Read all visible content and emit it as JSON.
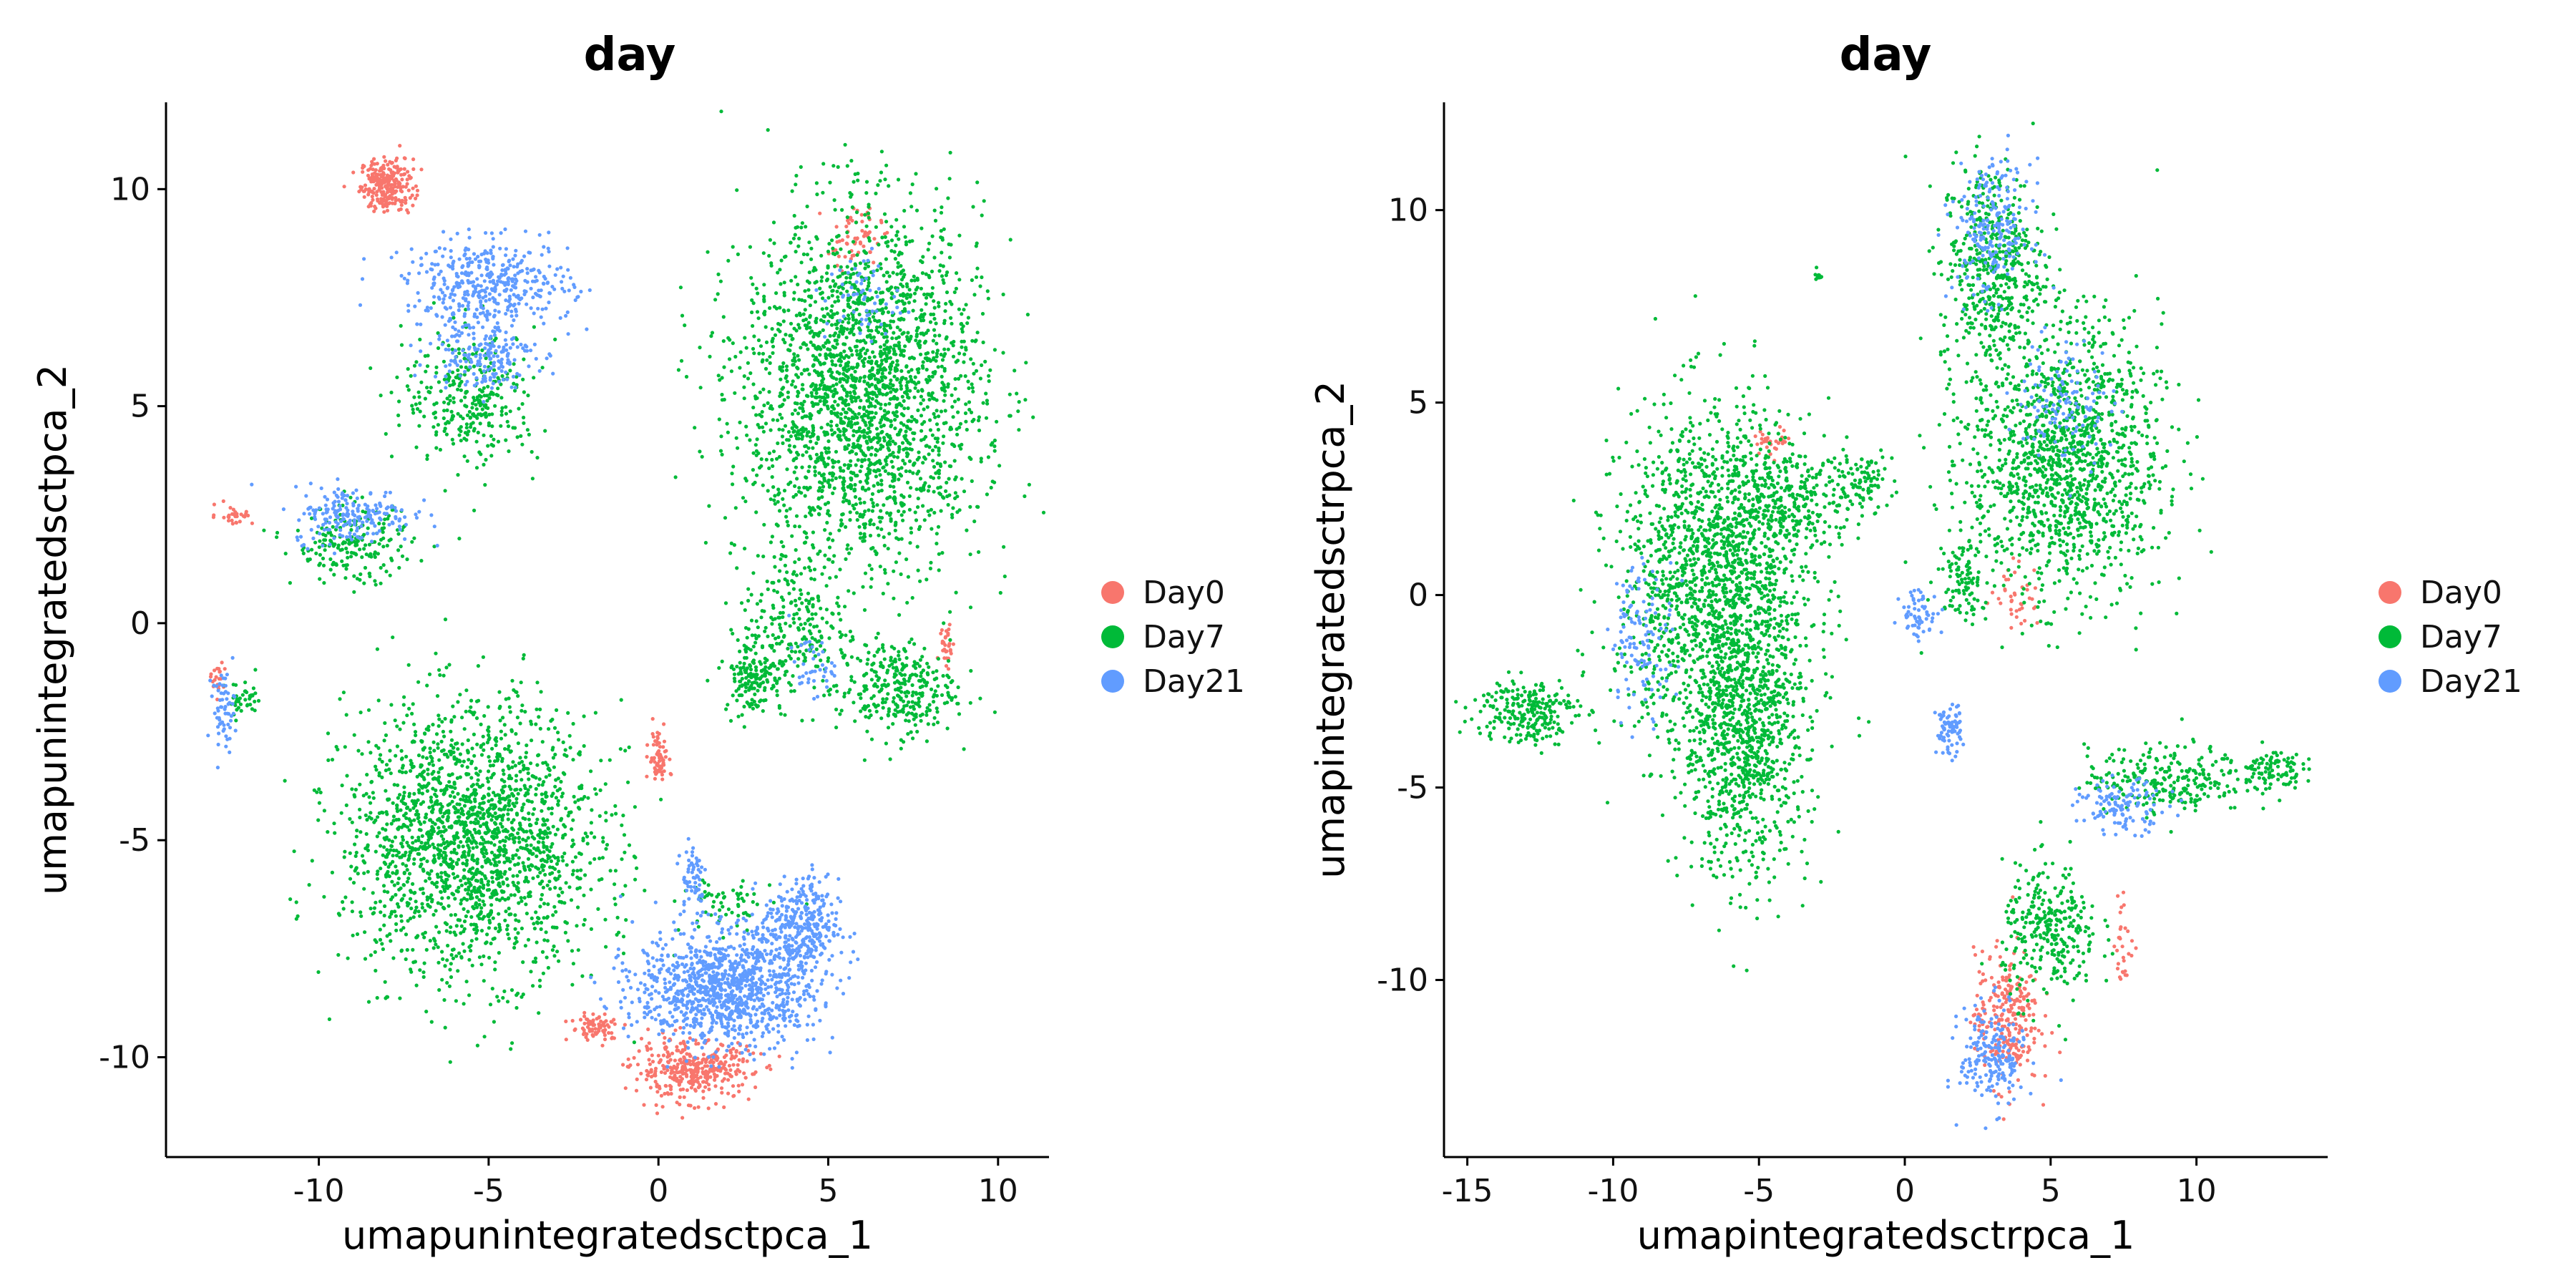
{
  "chart_data": [
    {
      "type": "scatter",
      "title": "day",
      "xlabel": "umapunintegratedsctpca_1",
      "ylabel": "umapunintegratedsctpca_2",
      "xlim": [
        -14.5,
        11.5
      ],
      "ylim": [
        -12.3,
        12
      ],
      "xticks": [
        -10,
        -5,
        0,
        5,
        10
      ],
      "yticks": [
        -10,
        -5,
        0,
        5,
        10
      ],
      "xtick_labels": [
        "-10",
        "-5",
        "0",
        "5",
        "10"
      ],
      "ytick_labels": [
        "-10",
        "-5",
        "0",
        "5",
        "10"
      ],
      "grid": false,
      "legend_position": "right",
      "series": [
        {
          "name": "Day0",
          "color": "#F8766D",
          "clusters": [
            {
              "cx": -8.0,
              "cy": 10.1,
              "rx": 0.7,
              "ry": 0.55,
              "n": 260
            },
            {
              "cx": 5.8,
              "cy": 8.9,
              "rx": 0.7,
              "ry": 0.6,
              "n": 60
            },
            {
              "cx": 0.0,
              "cy": -3.1,
              "rx": 0.25,
              "ry": 0.6,
              "n": 70
            },
            {
              "cx": 1.0,
              "cy": -10.3,
              "rx": 1.6,
              "ry": 0.6,
              "n": 380
            },
            {
              "cx": -1.8,
              "cy": -9.3,
              "rx": 0.7,
              "ry": 0.3,
              "n": 80
            },
            {
              "cx": 8.5,
              "cy": -0.5,
              "rx": 0.2,
              "ry": 0.5,
              "n": 30
            },
            {
              "cx": -12.5,
              "cy": 2.5,
              "rx": 0.5,
              "ry": 0.2,
              "n": 30
            },
            {
              "cx": -13.0,
              "cy": -1.2,
              "rx": 0.2,
              "ry": 0.3,
              "n": 20
            }
          ]
        },
        {
          "name": "Day7",
          "color": "#00BA38",
          "clusters": [
            {
              "cx": 6.0,
              "cy": 5.3,
              "rx": 3.2,
              "ry": 3.7,
              "n": 2400
            },
            {
              "cx": 4.0,
              "cy": 0.0,
              "rx": 1.4,
              "ry": 1.6,
              "n": 220
            },
            {
              "cx": 2.8,
              "cy": -1.2,
              "rx": 0.8,
              "ry": 0.8,
              "n": 160
            },
            {
              "cx": 7.0,
              "cy": -1.5,
              "rx": 1.6,
              "ry": 1.0,
              "n": 320
            },
            {
              "cx": -5.5,
              "cy": -5.0,
              "rx": 3.4,
              "ry": 2.8,
              "n": 2000
            },
            {
              "cx": -5.5,
              "cy": 5.2,
              "rx": 1.8,
              "ry": 1.4,
              "n": 320
            },
            {
              "cx": -9.0,
              "cy": 1.8,
              "rx": 1.6,
              "ry": 0.8,
              "n": 200
            },
            {
              "cx": -12.2,
              "cy": -1.8,
              "rx": 0.5,
              "ry": 0.4,
              "n": 40
            },
            {
              "cx": 2.0,
              "cy": -6.5,
              "rx": 1.2,
              "ry": 0.6,
              "n": 60
            }
          ]
        },
        {
          "name": "Day21",
          "color": "#619CFF",
          "clusters": [
            {
              "cx": -5.0,
              "cy": 7.8,
              "rx": 2.2,
              "ry": 0.9,
              "n": 420
            },
            {
              "cx": -5.2,
              "cy": 6.2,
              "rx": 1.4,
              "ry": 0.7,
              "n": 180
            },
            {
              "cx": 2.0,
              "cy": -8.4,
              "rx": 2.4,
              "ry": 1.2,
              "n": 1100
            },
            {
              "cx": 4.2,
              "cy": -7.0,
              "rx": 1.0,
              "ry": 1.0,
              "n": 320
            },
            {
              "cx": 1.0,
              "cy": -5.8,
              "rx": 0.4,
              "ry": 0.9,
              "n": 60
            },
            {
              "cx": -9.0,
              "cy": 2.5,
              "rx": 1.6,
              "ry": 0.6,
              "n": 200
            },
            {
              "cx": -12.8,
              "cy": -2.0,
              "rx": 0.3,
              "ry": 0.8,
              "n": 60
            },
            {
              "cx": 6.0,
              "cy": 7.5,
              "rx": 1.0,
              "ry": 1.0,
              "n": 60
            },
            {
              "cx": 4.5,
              "cy": -1.0,
              "rx": 0.6,
              "ry": 0.6,
              "n": 40
            }
          ]
        }
      ]
    },
    {
      "type": "scatter",
      "title": "day",
      "xlabel": "umapintegratedsctrpca_1",
      "ylabel": "umapintegratedsctrpca_2",
      "xlim": [
        -15.8,
        14.5
      ],
      "ylim": [
        -14.6,
        12.8
      ],
      "xticks": [
        -15,
        -10,
        -5,
        0,
        5,
        10
      ],
      "yticks": [
        -10,
        -5,
        0,
        5,
        10
      ],
      "xtick_labels": [
        "-15",
        "-10",
        "-5",
        "0",
        "5",
        "10"
      ],
      "ytick_labels": [
        "-10",
        "-5",
        "0",
        "5",
        "10"
      ],
      "grid": false,
      "legend_position": "right",
      "series": [
        {
          "name": "Day0",
          "color": "#F8766D",
          "clusters": [
            {
              "cx": 3.5,
              "cy": -11.0,
              "rx": 1.0,
              "ry": 1.6,
              "n": 260
            },
            {
              "cx": 3.8,
              "cy": 0.0,
              "rx": 0.8,
              "ry": 0.8,
              "n": 40
            },
            {
              "cx": -4.5,
              "cy": 4.0,
              "rx": 0.6,
              "ry": 0.3,
              "n": 30
            },
            {
              "cx": 7.5,
              "cy": -9.0,
              "rx": 0.3,
              "ry": 1.2,
              "n": 30
            }
          ]
        },
        {
          "name": "Day7",
          "color": "#00BA38",
          "clusters": [
            {
              "cx": -6.5,
              "cy": 0.5,
              "rx": 3.0,
              "ry": 4.0,
              "n": 1600
            },
            {
              "cx": -5.5,
              "cy": -3.8,
              "rx": 2.0,
              "ry": 3.2,
              "n": 900
            },
            {
              "cx": -4.0,
              "cy": 2.5,
              "rx": 2.5,
              "ry": 1.2,
              "n": 300
            },
            {
              "cx": -1.5,
              "cy": 3.0,
              "rx": 1.0,
              "ry": 0.6,
              "n": 80
            },
            {
              "cx": -13.0,
              "cy": -3.0,
              "rx": 1.6,
              "ry": 0.8,
              "n": 240
            },
            {
              "cx": 5.5,
              "cy": 3.5,
              "rx": 3.0,
              "ry": 3.2,
              "n": 1400
            },
            {
              "cx": 3.0,
              "cy": 8.5,
              "rx": 1.6,
              "ry": 2.5,
              "n": 500
            },
            {
              "cx": 9.0,
              "cy": -4.8,
              "rx": 2.5,
              "ry": 0.8,
              "n": 260
            },
            {
              "cx": 12.5,
              "cy": -4.5,
              "rx": 1.0,
              "ry": 0.5,
              "n": 100
            },
            {
              "cx": 5.0,
              "cy": -8.8,
              "rx": 1.5,
              "ry": 1.6,
              "n": 300
            },
            {
              "cx": 2.0,
              "cy": 0.5,
              "rx": 0.8,
              "ry": 1.0,
              "n": 100
            },
            {
              "cx": -3.0,
              "cy": 8.3,
              "rx": 0.1,
              "ry": 0.15,
              "n": 10
            }
          ]
        },
        {
          "name": "Day21",
          "color": "#619CFF",
          "clusters": [
            {
              "cx": 3.0,
              "cy": 9.5,
              "rx": 1.2,
              "ry": 1.6,
              "n": 220
            },
            {
              "cx": 3.0,
              "cy": -12.0,
              "rx": 1.0,
              "ry": 1.2,
              "n": 200
            },
            {
              "cx": 1.5,
              "cy": -3.5,
              "rx": 0.4,
              "ry": 0.6,
              "n": 80
            },
            {
              "cx": 7.5,
              "cy": -5.5,
              "rx": 1.4,
              "ry": 0.6,
              "n": 120
            },
            {
              "cx": 0.5,
              "cy": -0.5,
              "rx": 0.6,
              "ry": 0.6,
              "n": 60
            },
            {
              "cx": -9.0,
              "cy": -1.0,
              "rx": 1.0,
              "ry": 1.8,
              "n": 120
            },
            {
              "cx": 5.5,
              "cy": 5.0,
              "rx": 1.5,
              "ry": 1.5,
              "n": 120
            }
          ]
        }
      ]
    }
  ]
}
